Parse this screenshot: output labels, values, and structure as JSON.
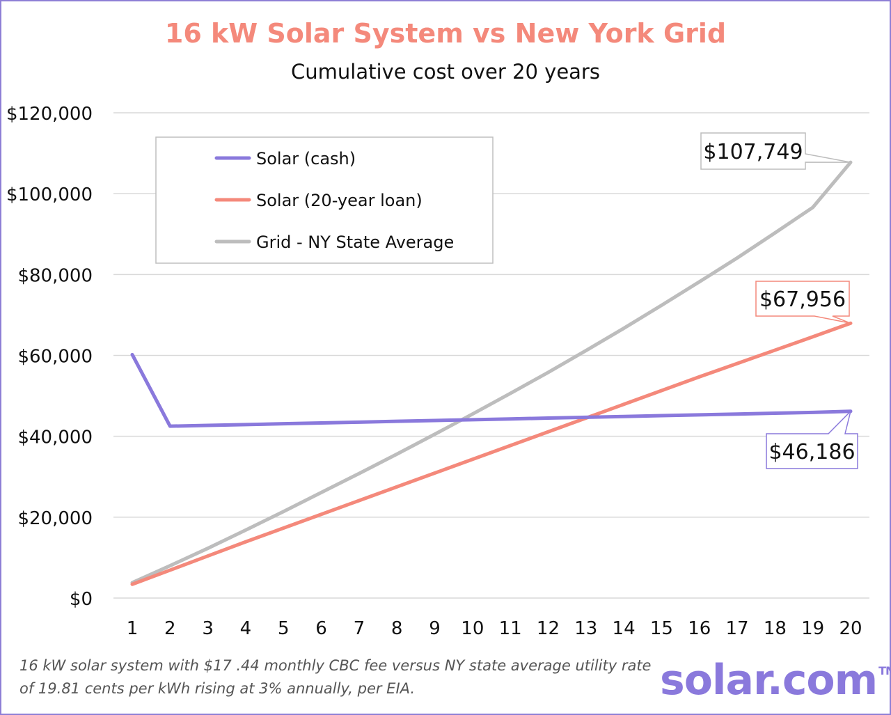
{
  "header": {
    "title": "16 kW Solar System vs New York Grid",
    "subtitle": "Cumulative cost over 20 years"
  },
  "chart_data": {
    "type": "line",
    "title": "16 kW Solar System vs New York Grid",
    "subtitle": "Cumulative cost over 20 years",
    "xlabel": "",
    "ylabel": "",
    "x": [
      1,
      2,
      3,
      4,
      5,
      6,
      7,
      8,
      9,
      10,
      11,
      12,
      13,
      14,
      15,
      16,
      17,
      18,
      19,
      20
    ],
    "ylim": [
      0,
      120000
    ],
    "yticks": [
      0,
      20000,
      40000,
      60000,
      80000,
      100000,
      120000
    ],
    "ytick_labels": [
      "$0",
      "$20,000",
      "$40,000",
      "$60,000",
      "$80,000",
      "$100,000",
      "$120,000"
    ],
    "grid": true,
    "legend_position": "top-left",
    "series": [
      {
        "name": "Solar (cash)",
        "color": "#8a79dc",
        "values": [
          60200,
          42500,
          42700,
          42900,
          43100,
          43300,
          43500,
          43700,
          43900,
          44100,
          44300,
          44500,
          44700,
          44900,
          45100,
          45300,
          45500,
          45700,
          45900,
          46186
        ]
      },
      {
        "name": "Solar (20-year loan)",
        "color": "#f4897b",
        "values": [
          3400,
          6900,
          10400,
          13900,
          17300,
          20700,
          24100,
          27500,
          30900,
          34300,
          37700,
          41100,
          44500,
          47900,
          51300,
          54700,
          58000,
          61300,
          64600,
          67956
        ]
      },
      {
        "name": "Grid - NY State Average",
        "color": "#bdbdbd",
        "values": [
          3800,
          8000,
          12300,
          16800,
          21400,
          26100,
          30800,
          35600,
          40500,
          45500,
          50600,
          55800,
          61200,
          66700,
          72400,
          78200,
          84100,
          90300,
          96600,
          107749
        ]
      }
    ],
    "annotations": [
      {
        "series": "Grid - NY State Average",
        "x": 20,
        "text": "$107,749"
      },
      {
        "series": "Solar (20-year loan)",
        "x": 20,
        "text": "$67,956"
      },
      {
        "series": "Solar (cash)",
        "x": 20,
        "text": "$46,186"
      }
    ]
  },
  "footnote": {
    "line1": "16 kW solar system with $17 .44 monthly CBC fee versus NY state average utility rate",
    "line2": "of 19.81 cents per kWh rising at 3% annually, per EIA."
  },
  "brand": {
    "name": "solar.com",
    "tm": "TM"
  }
}
